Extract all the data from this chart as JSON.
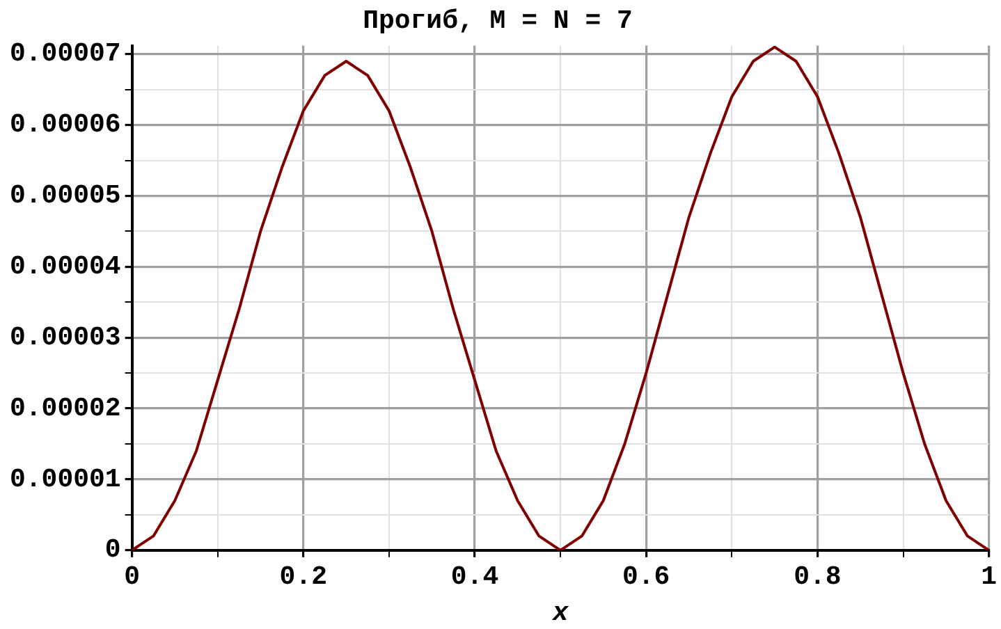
{
  "chart_data": {
    "type": "line",
    "title": "Прогиб, M = N = 7",
    "xlabel": "x",
    "x": [
      0,
      0.025,
      0.05,
      0.075,
      0.1,
      0.125,
      0.15,
      0.175,
      0.2,
      0.225,
      0.25,
      0.275,
      0.3,
      0.325,
      0.35,
      0.375,
      0.4,
      0.425,
      0.45,
      0.475,
      0.5,
      0.525,
      0.55,
      0.575,
      0.6,
      0.625,
      0.65,
      0.675,
      0.7,
      0.725,
      0.75,
      0.775,
      0.8,
      0.825,
      0.85,
      0.875,
      0.9,
      0.925,
      0.95,
      0.975,
      1
    ],
    "series": [
      {
        "color": "#800000",
        "values": [
          0,
          2e-06,
          7e-06,
          1.4e-05,
          2.4e-05,
          3.4e-05,
          4.5e-05,
          5.4e-05,
          6.2e-05,
          6.7e-05,
          6.9e-05,
          6.7e-05,
          6.2e-05,
          5.4e-05,
          4.5e-05,
          3.4e-05,
          2.4e-05,
          1.4e-05,
          7e-06,
          2e-06,
          0,
          2e-06,
          7e-06,
          1.5e-05,
          2.5e-05,
          3.6e-05,
          4.7e-05,
          5.6e-05,
          6.4e-05,
          6.9e-05,
          7.1e-05,
          6.9e-05,
          6.4e-05,
          5.6e-05,
          4.7e-05,
          3.6e-05,
          2.5e-05,
          1.5e-05,
          7e-06,
          2e-06,
          0
        ]
      }
    ],
    "xlim": [
      0,
      1
    ],
    "ylim": [
      0,
      7.12e-05
    ],
    "xticks": [
      0,
      {
        "value": 0.1,
        "label": null
      },
      0.2,
      {
        "value": 0.3,
        "label": null
      },
      0.4,
      {
        "value": 0.5,
        "label": null
      },
      0.6,
      {
        "value": 0.7,
        "label": null
      },
      0.8,
      {
        "value": 0.9,
        "label": null
      },
      1
    ],
    "yticks": [
      0,
      {
        "value": 5e-06,
        "label": null
      },
      {
        "value": 1e-05,
        "label": "0.00001"
      },
      {
        "value": 1.5e-05,
        "label": null
      },
      {
        "value": 2e-05,
        "label": "0.00002"
      },
      {
        "value": 2.5e-05,
        "label": null
      },
      {
        "value": 3e-05,
        "label": "0.00003"
      },
      {
        "value": 3.5e-05,
        "label": null
      },
      {
        "value": 4e-05,
        "label": "0.00004"
      },
      {
        "value": 4.5e-05,
        "label": null
      },
      {
        "value": 5e-05,
        "label": "0.00005"
      },
      {
        "value": 5.5e-05,
        "label": null
      },
      {
        "value": 6e-05,
        "label": "0.00006"
      },
      {
        "value": 6.5e-05,
        "label": null
      },
      {
        "value": 7e-05,
        "label": "0.00007"
      }
    ],
    "grid": true,
    "legend": false,
    "marker": "none",
    "line_style": "solid"
  }
}
